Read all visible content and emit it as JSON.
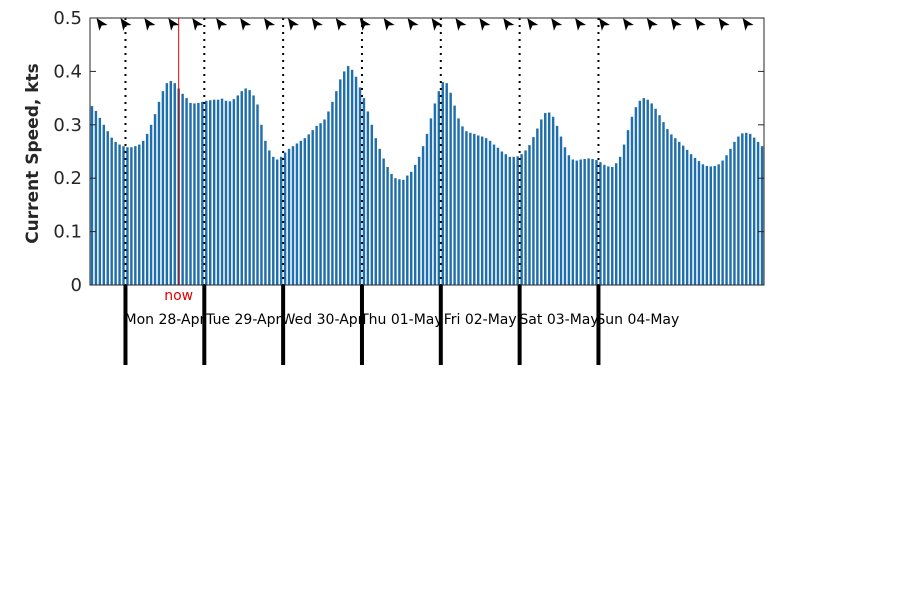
{
  "chart_data": {
    "type": "bar",
    "ylabel": "Current Speed, kts",
    "ylim": [
      0,
      0.5
    ],
    "yticks": [
      "0",
      "0.1",
      "0.2",
      "0.3",
      "0.4",
      "0.5"
    ],
    "bar_color": "#1f6fad",
    "now_color": "#e00000",
    "now_label": "now",
    "now_index": 22.5,
    "days": [
      {
        "label": "Mon 28-Apr",
        "start_index": 9
      },
      {
        "label": "Tue 29-Apr",
        "start_index": 29
      },
      {
        "label": "Wed 30-Apr",
        "start_index": 49
      },
      {
        "label": "Thu 01-May",
        "start_index": 69
      },
      {
        "label": "Fri 02-May",
        "start_index": 89
      },
      {
        "label": "Sat 03-May",
        "start_index": 109
      },
      {
        "label": "Sun 04-May",
        "start_index": 129
      }
    ],
    "direction_arrows": 28,
    "values": [
      0.335,
      0.326,
      0.313,
      0.3,
      0.288,
      0.276,
      0.268,
      0.263,
      0.26,
      0.258,
      0.258,
      0.26,
      0.263,
      0.27,
      0.283,
      0.3,
      0.32,
      0.343,
      0.363,
      0.378,
      0.382,
      0.378,
      0.368,
      0.358,
      0.35,
      0.341,
      0.34,
      0.341,
      0.343,
      0.345,
      0.346,
      0.347,
      0.347,
      0.349,
      0.345,
      0.344,
      0.348,
      0.355,
      0.363,
      0.368,
      0.365,
      0.355,
      0.338,
      0.3,
      0.27,
      0.252,
      0.24,
      0.235,
      0.24,
      0.248,
      0.255,
      0.26,
      0.265,
      0.27,
      0.275,
      0.282,
      0.29,
      0.298,
      0.303,
      0.31,
      0.325,
      0.343,
      0.363,
      0.385,
      0.4,
      0.41,
      0.403,
      0.39,
      0.37,
      0.35,
      0.325,
      0.3,
      0.275,
      0.255,
      0.237,
      0.221,
      0.208,
      0.2,
      0.198,
      0.197,
      0.205,
      0.212,
      0.225,
      0.24,
      0.26,
      0.283,
      0.312,
      0.34,
      0.363,
      0.38,
      0.378,
      0.36,
      0.336,
      0.312,
      0.297,
      0.288,
      0.285,
      0.283,
      0.28,
      0.278,
      0.275,
      0.27,
      0.263,
      0.257,
      0.25,
      0.245,
      0.24,
      0.24,
      0.241,
      0.245,
      0.252,
      0.262,
      0.277,
      0.293,
      0.31,
      0.322,
      0.323,
      0.315,
      0.298,
      0.278,
      0.258,
      0.243,
      0.235,
      0.233,
      0.235,
      0.236,
      0.237,
      0.236,
      0.234,
      0.23,
      0.225,
      0.222,
      0.221,
      0.228,
      0.24,
      0.263,
      0.29,
      0.315,
      0.333,
      0.345,
      0.35,
      0.347,
      0.34,
      0.33,
      0.318,
      0.305,
      0.292,
      0.282,
      0.275,
      0.268,
      0.261,
      0.253,
      0.245,
      0.238,
      0.232,
      0.226,
      0.223,
      0.222,
      0.223,
      0.226,
      0.233,
      0.243,
      0.255,
      0.268,
      0.278,
      0.284,
      0.285,
      0.283,
      0.276,
      0.268,
      0.26
    ]
  }
}
